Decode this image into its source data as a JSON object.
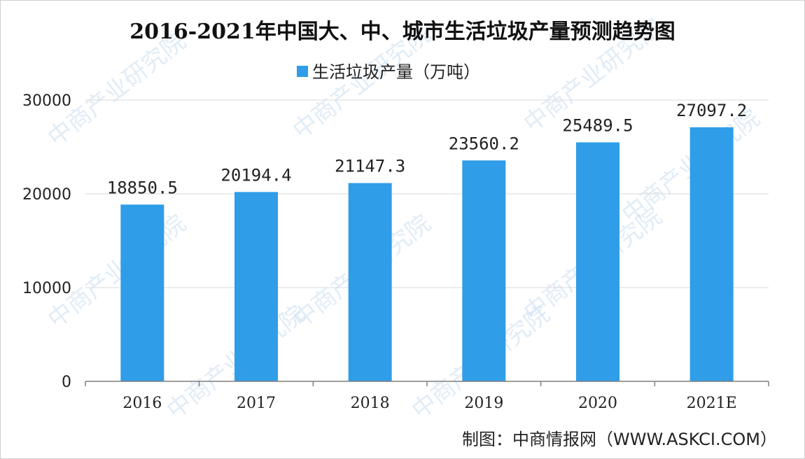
{
  "chart_data": {
    "type": "bar",
    "title": "2016-2021年中国大、中、城市生活垃圾产量预测趋势图",
    "categories": [
      "2016",
      "2017",
      "2018",
      "2019",
      "2020",
      "2021E"
    ],
    "series": [
      {
        "name": "生活垃圾产量（万吨）",
        "values": [
          18850.5,
          20194.4,
          21147.3,
          23560.2,
          25489.5,
          27097.2
        ]
      }
    ],
    "data_labels": [
      "18850.5",
      "20194.4",
      "21147.3",
      "23560.2",
      "25489.5",
      "27097.2"
    ],
    "yticks": [
      "0",
      "10000",
      "20000",
      "30000"
    ],
    "ylim": [
      0,
      30000
    ],
    "grid": true,
    "legend_position": "top-center",
    "colors": {
      "bar": "#2f9de8",
      "grid": "#d9d9d9",
      "axis": "#7f7f7f"
    }
  },
  "source_text": "制图：中商情报网（WWW.ASKCI.COM）",
  "watermark_text": "中商产业研究院"
}
